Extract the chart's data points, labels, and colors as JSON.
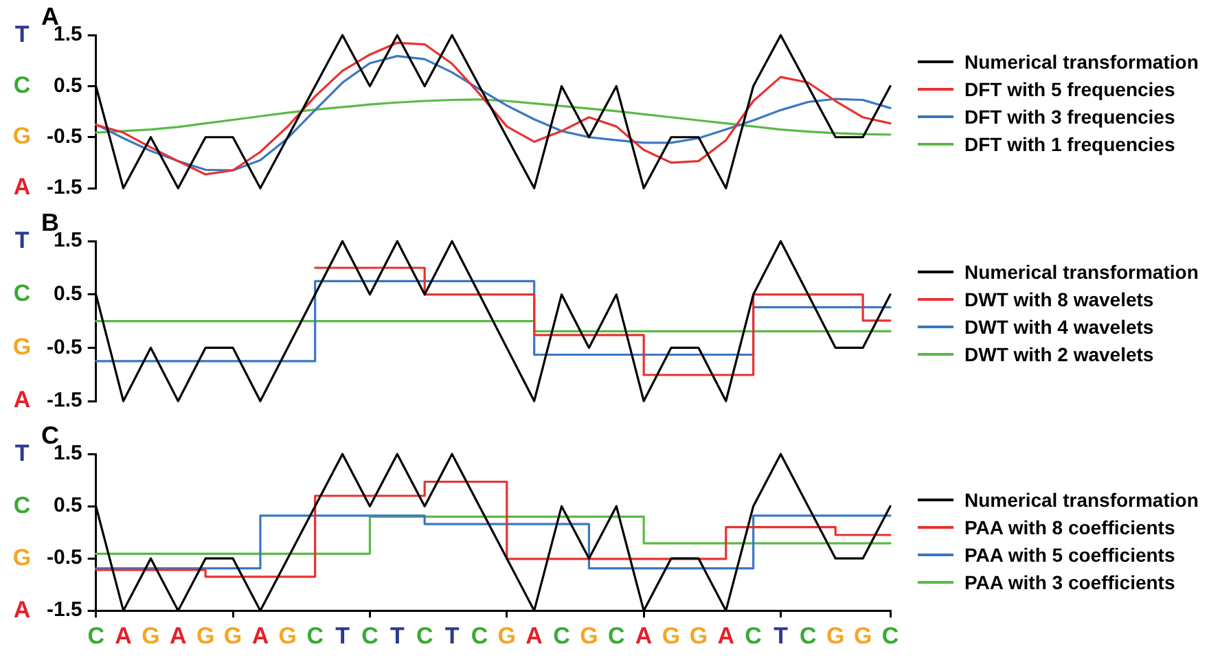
{
  "chart_data": [
    {
      "type": "line",
      "title": "A",
      "categories": [
        null,
        null,
        null,
        null,
        null,
        null,
        null,
        null,
        null,
        null,
        null,
        null,
        null,
        null,
        null,
        null,
        null,
        null,
        null,
        null,
        null,
        null,
        null,
        null,
        null,
        null,
        null,
        null,
        null,
        null
      ],
      "series": [
        {
          "name": "Numerical transformation",
          "color": "#000000",
          "values": [
            0.5,
            -1.5,
            -0.5,
            -1.5,
            -0.5,
            -0.5,
            -1.5,
            -0.5,
            0.5,
            1.5,
            0.5,
            1.5,
            0.5,
            1.5,
            0.5,
            -0.5,
            -1.5,
            0.5,
            -0.5,
            0.5,
            -1.5,
            -0.5,
            -0.5,
            -1.5,
            0.5,
            1.5,
            0.5,
            -0.5,
            -0.5,
            0.5
          ]
        },
        {
          "name": "DFT with 5 frequencies",
          "color": "#e8312f",
          "values": [
            -0.26,
            -0.41,
            -0.7,
            -0.97,
            -1.23,
            -1.15,
            -0.79,
            -0.29,
            0.3,
            0.8,
            1.12,
            1.35,
            1.32,
            0.94,
            0.35,
            -0.29,
            -0.59,
            -0.38,
            -0.11,
            -0.29,
            -0.75,
            -1.0,
            -0.97,
            -0.56,
            0.21,
            0.68,
            0.57,
            0.21,
            -0.11,
            -0.23
          ]
        },
        {
          "name": "DFT with 3 frequencies",
          "color": "#3a78c2",
          "values": [
            -0.25,
            -0.52,
            -0.77,
            -0.97,
            -1.14,
            -1.15,
            -0.95,
            -0.52,
            0.03,
            0.57,
            0.95,
            1.09,
            1.03,
            0.77,
            0.44,
            0.12,
            -0.15,
            -0.38,
            -0.5,
            -0.56,
            -0.61,
            -0.61,
            -0.52,
            -0.35,
            -0.17,
            0.03,
            0.19,
            0.25,
            0.23,
            0.07
          ]
        },
        {
          "name": "DFT with 1 frequencies",
          "color": "#5ab947",
          "values": [
            -0.41,
            -0.38,
            -0.35,
            -0.3,
            -0.23,
            -0.16,
            -0.09,
            -0.02,
            0.04,
            0.09,
            0.14,
            0.18,
            0.21,
            0.23,
            0.24,
            0.21,
            0.16,
            0.11,
            0.06,
            0.01,
            -0.05,
            -0.11,
            -0.17,
            -0.23,
            -0.29,
            -0.35,
            -0.39,
            -0.42,
            -0.44,
            -0.45
          ]
        }
      ],
      "ylim": [
        -1.5,
        1.5
      ],
      "yticks": [
        -1.5,
        -0.5,
        0.5,
        1.5
      ],
      "grid": false,
      "legend": "right",
      "tick_labels": "y",
      "annotations": [
        "T",
        "C",
        "G",
        "A"
      ]
    },
    {
      "type": "line",
      "title": "B",
      "categories": [
        null,
        null,
        null,
        null,
        null,
        null,
        null,
        null,
        null,
        null,
        null,
        null,
        null,
        null,
        null,
        null,
        null,
        null,
        null,
        null,
        null,
        null,
        null,
        null,
        null,
        null,
        null,
        null,
        null,
        null
      ],
      "series": [
        {
          "name": "Numerical transformation",
          "color": "#000000",
          "values": [
            0.5,
            -1.5,
            -0.5,
            -1.5,
            -0.5,
            -0.5,
            -1.5,
            -0.5,
            0.5,
            1.5,
            0.5,
            1.5,
            0.5,
            1.5,
            0.5,
            -0.5,
            -1.5,
            0.5,
            -0.5,
            0.5,
            -1.5,
            -0.5,
            -0.5,
            -1.5,
            0.5,
            1.5,
            0.5,
            -0.5,
            -0.5,
            0.5
          ]
        },
        {
          "name": "DWT with 8 wavelets",
          "type": "step",
          "color": "#e8312f",
          "values": [
            null,
            null,
            null,
            null,
            null,
            null,
            null,
            null,
            1.0,
            1.0,
            1.0,
            1.0,
            0.5,
            0.5,
            0.5,
            0.5,
            -0.26,
            -0.26,
            -0.26,
            -0.26,
            -1.01,
            -1.01,
            -1.01,
            -1.01,
            0.5,
            0.5,
            0.5,
            0.5,
            0.01,
            0.01
          ]
        },
        {
          "name": "DWT with 4 wavelets",
          "type": "step",
          "color": "#3a78c2",
          "values": [
            -0.75,
            -0.75,
            -0.75,
            -0.75,
            -0.75,
            -0.75,
            -0.75,
            -0.75,
            0.75,
            0.75,
            0.75,
            0.75,
            0.75,
            0.75,
            0.75,
            0.75,
            -0.63,
            -0.63,
            -0.63,
            -0.63,
            -0.63,
            -0.63,
            -0.63,
            -0.63,
            0.26,
            0.26,
            0.26,
            0.26,
            0.26,
            0.26
          ]
        },
        {
          "name": "DWT with 2 wavelets",
          "type": "step",
          "color": "#5ab947",
          "values": [
            0.0,
            0.0,
            0.0,
            0.0,
            0.0,
            0.0,
            0.0,
            0.0,
            0.0,
            0.0,
            0.0,
            0.0,
            0.0,
            0.0,
            0.0,
            0.0,
            -0.19,
            -0.19,
            -0.19,
            -0.19,
            -0.19,
            -0.19,
            -0.19,
            -0.19,
            -0.19,
            -0.19,
            -0.19,
            -0.19,
            -0.19,
            -0.19
          ]
        }
      ],
      "ylim": [
        -1.5,
        1.5
      ],
      "yticks": [
        -1.5,
        -0.5,
        0.5,
        1.5
      ],
      "grid": false,
      "legend": "right",
      "tick_labels": "y",
      "annotations": [
        "T",
        "C",
        "G",
        "A"
      ]
    },
    {
      "type": "line",
      "title": "C",
      "categories": [
        "C",
        "A",
        "G",
        "A",
        "G",
        "G",
        "A",
        "G",
        "C",
        "T",
        "C",
        "T",
        "C",
        "T",
        "C",
        "G",
        "A",
        "C",
        "G",
        "C",
        "A",
        "G",
        "G",
        "A",
        "C",
        "T",
        "C",
        "G",
        "G",
        "C"
      ],
      "series": [
        {
          "name": "Numerical transformation",
          "color": "#000000",
          "values": [
            0.5,
            -1.5,
            -0.5,
            -1.5,
            -0.5,
            -0.5,
            -1.5,
            -0.5,
            0.5,
            1.5,
            0.5,
            1.5,
            0.5,
            1.5,
            0.5,
            -0.5,
            -1.5,
            0.5,
            -0.5,
            0.5,
            -1.5,
            -0.5,
            -0.5,
            -1.5,
            0.5,
            1.5,
            0.5,
            -0.5,
            -0.5,
            0.5
          ]
        },
        {
          "name": "PAA with 8 coefficients",
          "type": "step",
          "color": "#e8312f",
          "values": [
            -0.72,
            -0.72,
            -0.72,
            -0.72,
            -0.85,
            -0.85,
            -0.85,
            -0.85,
            0.7,
            0.7,
            0.7,
            0.7,
            0.97,
            0.97,
            0.97,
            -0.51,
            -0.51,
            -0.51,
            -0.51,
            -0.51,
            -0.51,
            -0.51,
            -0.51,
            0.1,
            0.1,
            0.1,
            0.1,
            -0.05,
            -0.05,
            -0.05
          ]
        },
        {
          "name": "PAA with 5 coefficients",
          "type": "step",
          "color": "#3a78c2",
          "values": [
            -0.69,
            -0.69,
            -0.69,
            -0.69,
            -0.69,
            -0.69,
            0.32,
            0.32,
            0.32,
            0.32,
            0.32,
            0.32,
            0.16,
            0.16,
            0.16,
            0.16,
            0.16,
            0.16,
            -0.69,
            -0.69,
            -0.69,
            -0.69,
            -0.69,
            -0.69,
            0.32,
            0.32,
            0.32,
            0.32,
            0.32,
            0.32
          ]
        },
        {
          "name": "PAA with 3 coefficients",
          "type": "step",
          "color": "#5ab947",
          "values": [
            -0.41,
            -0.41,
            -0.41,
            -0.41,
            -0.41,
            -0.41,
            -0.41,
            -0.41,
            -0.41,
            -0.41,
            0.3,
            0.3,
            0.3,
            0.3,
            0.3,
            0.3,
            0.3,
            0.3,
            0.3,
            0.3,
            -0.21,
            -0.21,
            -0.21,
            -0.21,
            -0.21,
            -0.21,
            -0.21,
            -0.21,
            -0.21,
            -0.21
          ]
        }
      ],
      "ylim": [
        -1.5,
        1.5
      ],
      "yticks": [
        -1.5,
        -0.5,
        0.5,
        1.5
      ],
      "grid": false,
      "legend": "right",
      "annotations": [
        "T",
        "C",
        "G",
        "A"
      ]
    }
  ]
}
